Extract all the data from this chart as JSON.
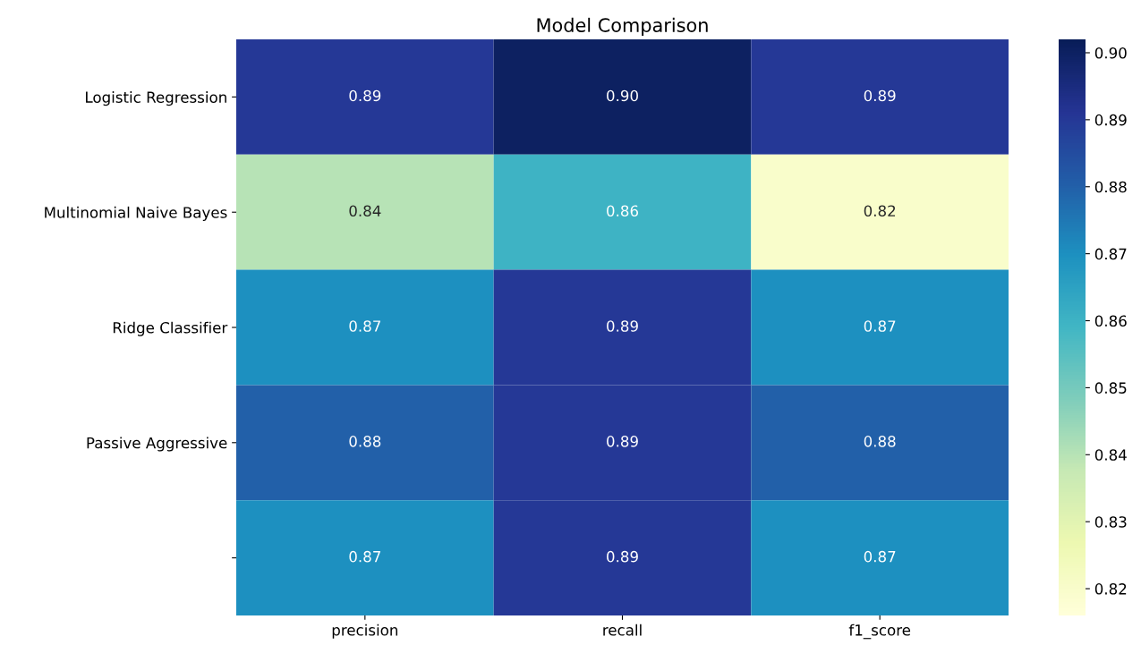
{
  "chart_data": {
    "type": "heatmap",
    "title": "Model Comparison",
    "categories": [
      "precision",
      "recall",
      "f1_score"
    ],
    "y_categories": [
      "Logistic Regression",
      "Multinomial Naive Bayes",
      "Ridge Classifier",
      "Passive Aggressive",
      null
    ],
    "cells": [
      [
        0.89,
        0.9,
        0.89
      ],
      [
        0.84,
        0.86,
        0.82
      ],
      [
        0.87,
        0.89,
        0.87
      ],
      [
        0.88,
        0.89,
        0.88
      ],
      [
        0.87,
        0.89,
        0.87
      ]
    ],
    "cell_labels": [
      [
        "0.89",
        "0.90",
        "0.89"
      ],
      [
        "0.84",
        "0.86",
        "0.82"
      ],
      [
        "0.87",
        "0.89",
        "0.87"
      ],
      [
        "0.88",
        "0.89",
        "0.88"
      ],
      [
        "0.87",
        "0.89",
        "0.87"
      ]
    ],
    "clim": [
      0.816,
      0.902
    ],
    "cticks": [
      0.82,
      0.83,
      0.84,
      0.85,
      0.86,
      0.87,
      0.88,
      0.89,
      {
        "value": 0.9,
        "label": "0.90"
      }
    ]
  }
}
